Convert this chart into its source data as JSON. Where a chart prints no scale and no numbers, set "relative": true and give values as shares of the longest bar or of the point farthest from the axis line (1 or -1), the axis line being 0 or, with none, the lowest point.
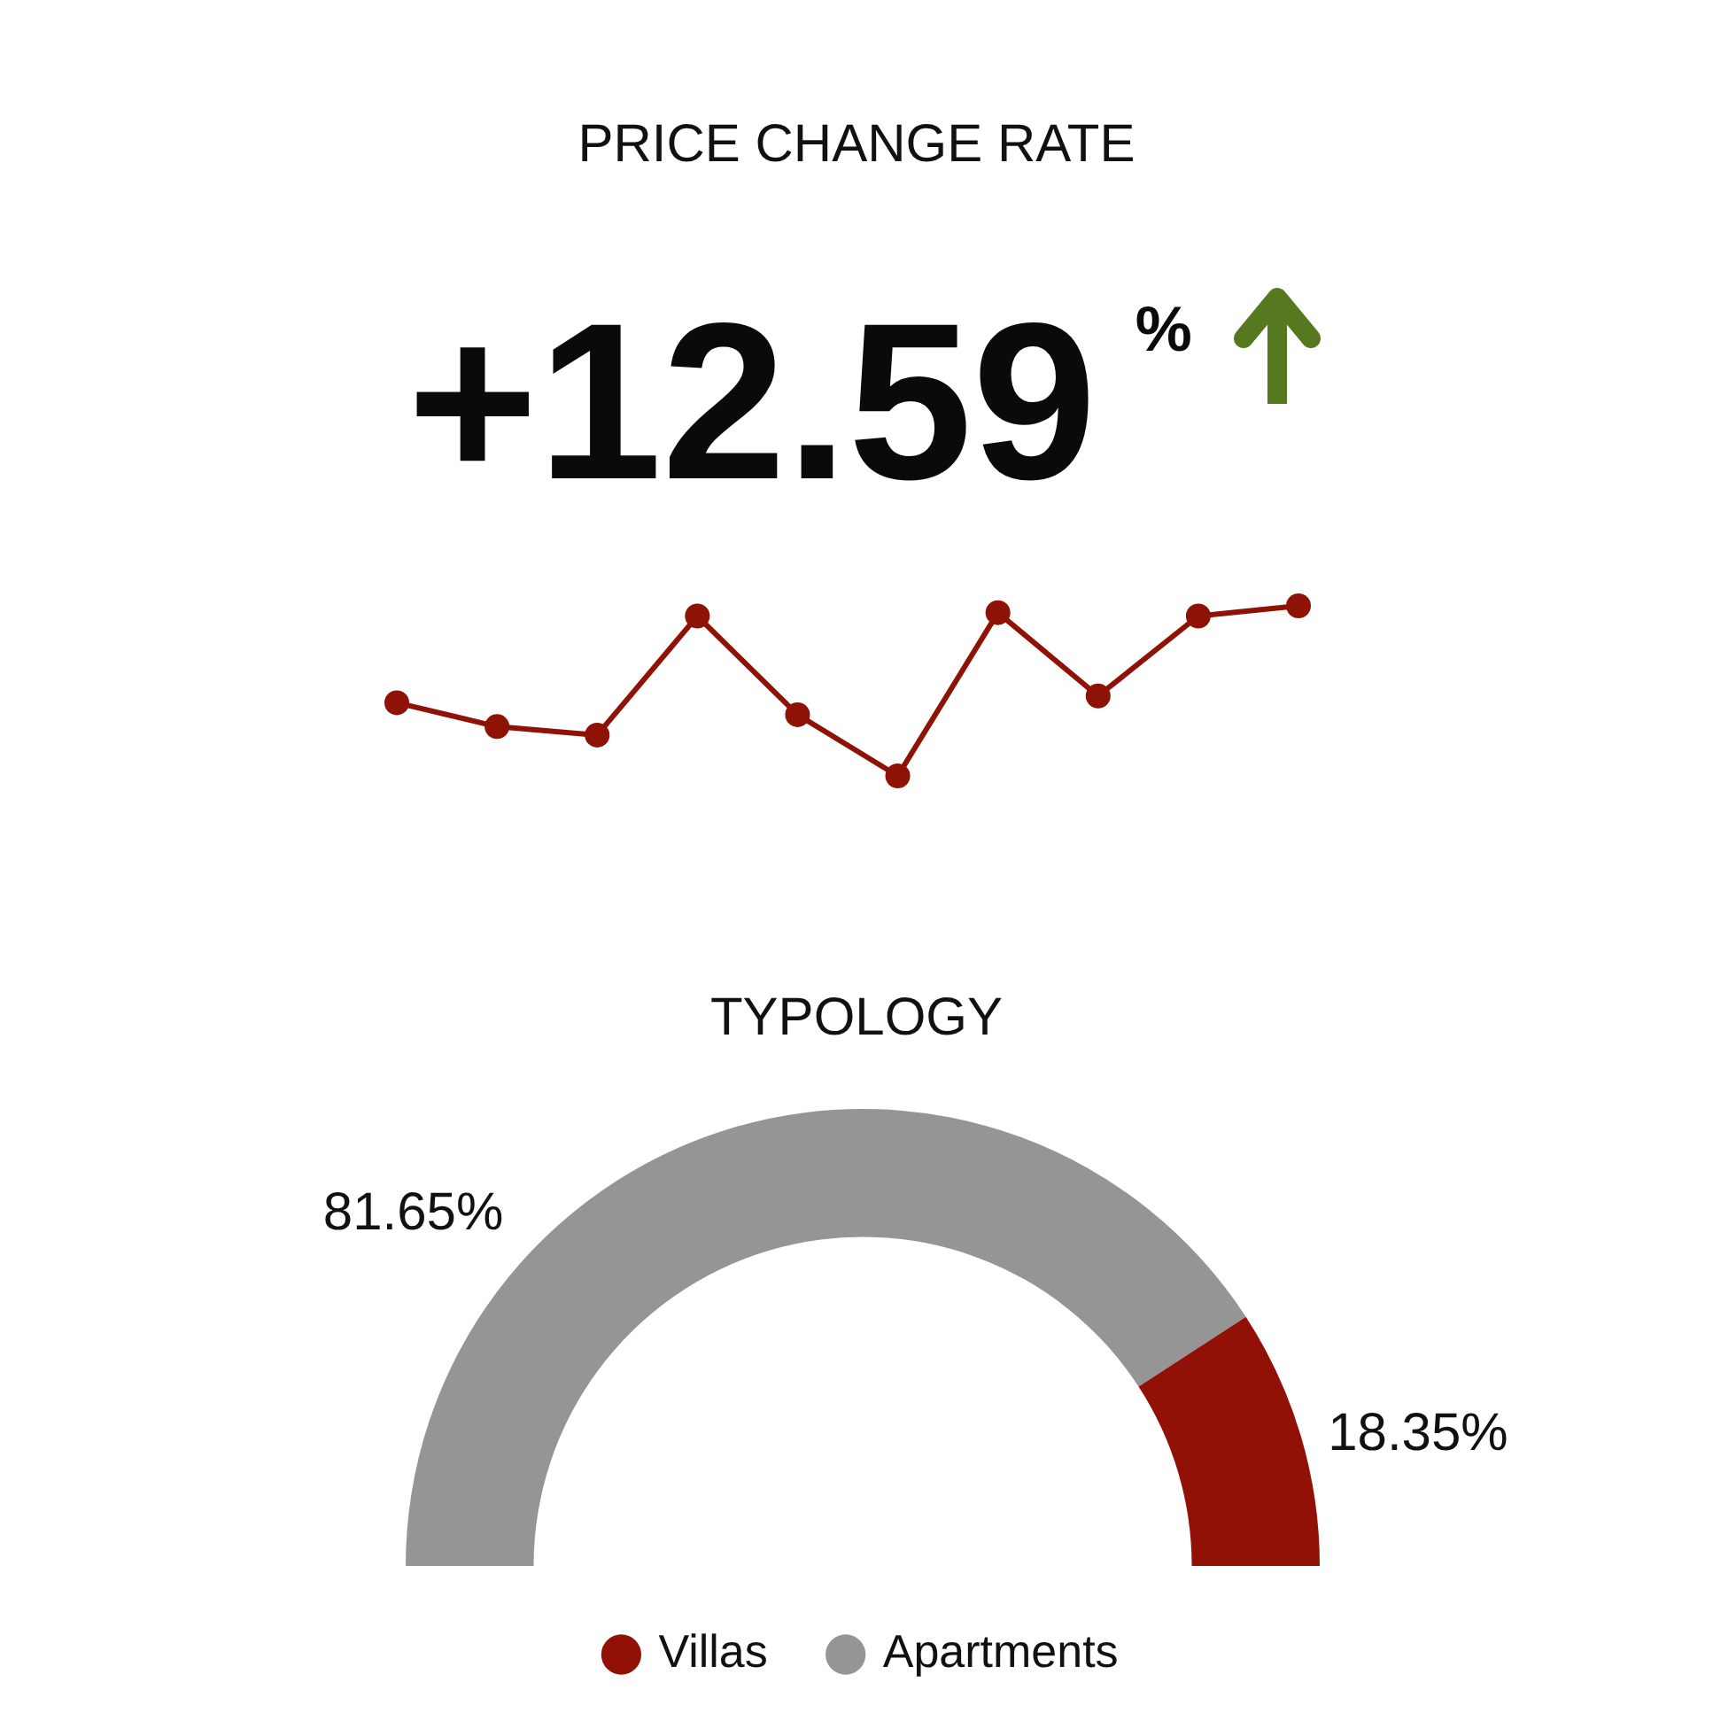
{
  "chart_data": [
    {
      "type": "line",
      "title": "PRICE CHANGE RATE",
      "subtitle": "+12.59$^{%}$",
      "categories": [
        null,
        null,
        null,
        null,
        null,
        null,
        null,
        null,
        null,
        null
      ],
      "values": [
        0.43,
        0.29,
        0.24,
        0.94,
        0.36,
        0,
        0.96,
        0.47,
        0.94,
        1
      ],
      "color": "#8e1206",
      "relative": true,
      "marker": "circle",
      "line_style": "solid"
    },
    {
      "type": "donut",
      "title": "TYPOLOGY",
      "categories": [
        "Villas",
        "Apartments"
      ],
      "values": [
        18.35,
        81.65
      ],
      "colors": [
        "#921107",
        "#959595"
      ],
      "value_labels": [
        "18.35%",
        "81.65%"
      ],
      "legend": "bottom"
    }
  ]
}
